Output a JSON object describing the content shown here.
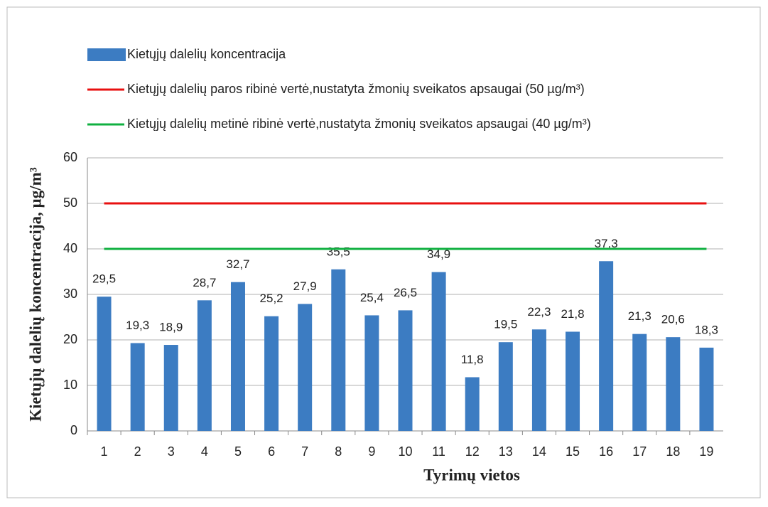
{
  "chart_data": {
    "type": "bar",
    "ylabel": "Kietųjų dalelių koncentracija, µg/m³",
    "xlabel": "Tyrimų vietos",
    "categories": [
      "1",
      "2",
      "3",
      "4",
      "5",
      "6",
      "7",
      "8",
      "9",
      "10",
      "11",
      "12",
      "13",
      "14",
      "15",
      "16",
      "17",
      "18",
      "19"
    ],
    "series": [
      {
        "name": "Kietųjų dalelių koncentracija",
        "type": "bar",
        "color": "#3c7cc2",
        "values": [
          29.5,
          19.3,
          18.9,
          28.7,
          32.7,
          25.2,
          27.9,
          35.5,
          25.4,
          26.5,
          34.9,
          11.8,
          19.5,
          22.3,
          21.8,
          37.3,
          21.3,
          20.6,
          18.3
        ],
        "value_labels": [
          "29,5",
          "19,3",
          "18,9",
          "28,7",
          "32,7",
          "25,2",
          "27,9",
          "35,5",
          "25,4",
          "26,5",
          "34,9",
          "11,8",
          "19,5",
          "22,3",
          "21,8",
          "37,3",
          "21,3",
          "20,6",
          "18,3"
        ]
      },
      {
        "name": "Kietųjų dalelių paros ribinė vertė,nustatyta žmonių sveikatos apsaugai (50 µg/m³)",
        "type": "line",
        "color": "#e81010",
        "values": [
          50,
          50,
          50,
          50,
          50,
          50,
          50,
          50,
          50,
          50,
          50,
          50,
          50,
          50,
          50,
          50,
          50,
          50,
          50
        ]
      },
      {
        "name": "Kietųjų dalelių metinė ribinė vertė,nustatyta žmonių sveikatos apsaugai (40 µg/m³)",
        "type": "line",
        "color": "#10b040",
        "values": [
          40,
          40,
          40,
          40,
          40,
          40,
          40,
          40,
          40,
          40,
          40,
          40,
          40,
          40,
          40,
          40,
          40,
          40,
          40
        ]
      }
    ],
    "ylim": [
      0,
      60
    ],
    "yticks": [
      0,
      10,
      20,
      30,
      40,
      50,
      60
    ],
    "grid": true,
    "legend": "top"
  }
}
